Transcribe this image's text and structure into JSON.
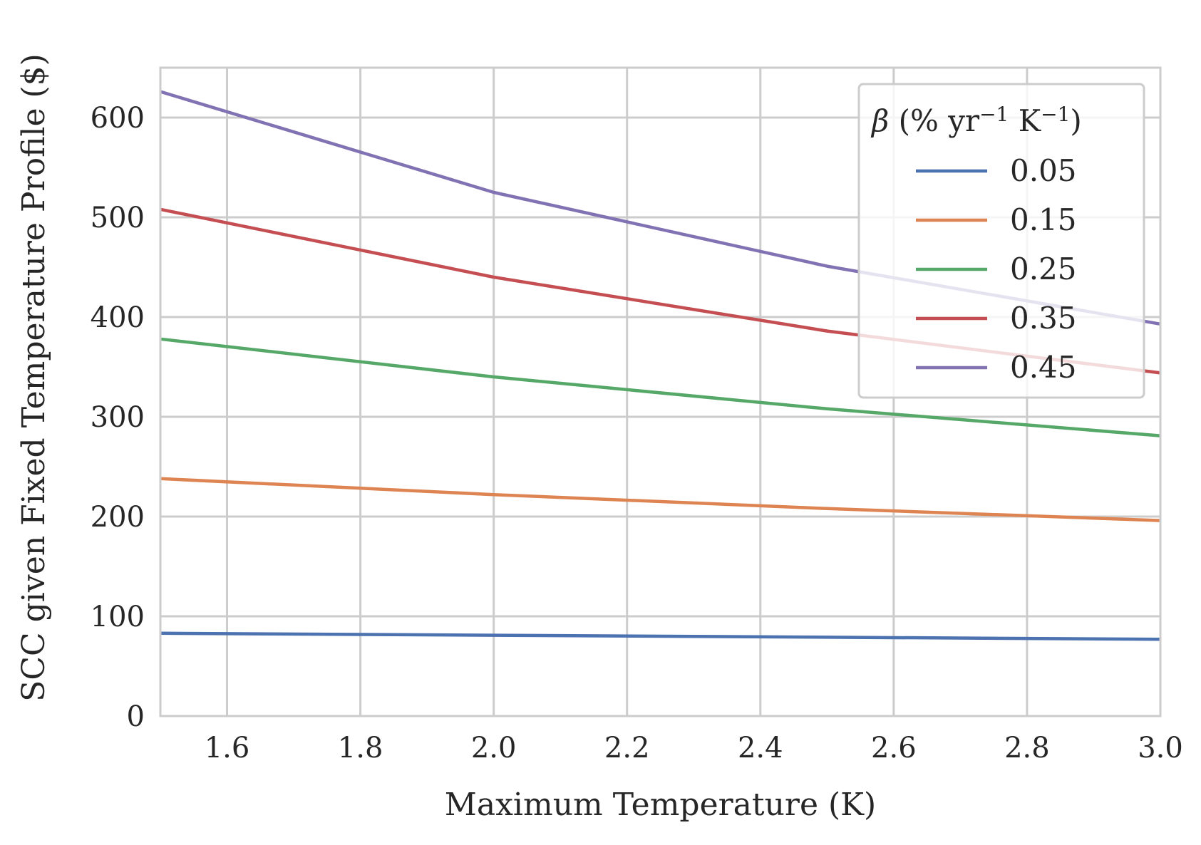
{
  "chart_data": {
    "type": "line",
    "title": "",
    "xlabel": "Maximum Temperature (K)",
    "ylabel": "SCC given Fixed Temperature Profile ($)",
    "xlim": [
      1.5,
      3.0
    ],
    "ylim": [
      0,
      650
    ],
    "xticks": [
      "1.6",
      "1.8",
      "2.0",
      "2.2",
      "2.4",
      "2.6",
      "2.8",
      "3.0"
    ],
    "yticks": [
      "0",
      "100",
      "200",
      "300",
      "400",
      "500",
      "600"
    ],
    "grid": true,
    "legend": {
      "title_symbol": "β",
      "title_open": " (% yr",
      "title_exp1": "−1",
      "title_mid": " K",
      "title_exp2": "−1",
      "title_close": ")",
      "placement": "top-right"
    },
    "x": [
      1.5,
      2.0,
      2.5,
      3.0
    ],
    "series": [
      {
        "name": "0.05",
        "color": "#4c72b0",
        "values": [
          83,
          81,
          79,
          77
        ]
      },
      {
        "name": "0.15",
        "color": "#dd8452",
        "values": [
          238,
          222,
          208,
          196
        ]
      },
      {
        "name": "0.25",
        "color": "#55a868",
        "values": [
          378,
          340,
          308,
          281
        ]
      },
      {
        "name": "0.35",
        "color": "#c44e52",
        "values": [
          508,
          440,
          386,
          344
        ]
      },
      {
        "name": "0.45",
        "color": "#8172b3",
        "values": [
          626,
          525,
          451,
          393
        ]
      }
    ]
  }
}
